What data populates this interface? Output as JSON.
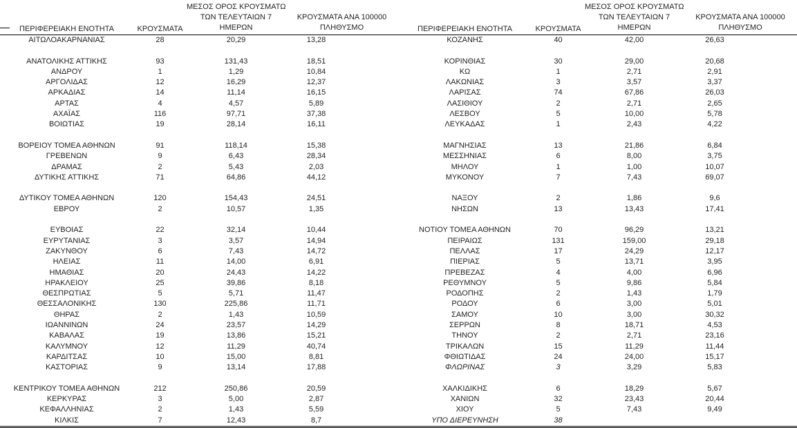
{
  "colors": {
    "background": "#ffffff",
    "text": "#1f1f1f",
    "line": "#000000"
  },
  "table": {
    "headers": {
      "region": "ΠΕΡΙΦΕΡΕΙΑΚΗ ΕΝΟΤΗΤΑ",
      "cases": "ΚΡΟΥΣΜΑΤΑ",
      "avg7_lines": [
        "ΜΕΣΟΣ ΟΡΟΣ ΚΡΟΥΣΜΑΤΩΝ",
        "ΤΩΝ ΤΕΛΕΥΤΑΙΩΝ 7",
        "ΗΜΕΡΩΝ"
      ],
      "per100k_lines": [
        "ΚΡΟΥΣΜΑΤΑ ΑΝΑ 100000",
        "ΠΛΗΘΥΣΜΟ"
      ]
    },
    "left_rows": [
      {
        "region": "ΑΙΤΩΛΟΑΚΑΡΝΑΝΙΑΣ",
        "cases": "28",
        "avg": "20,29",
        "rate": "13,28"
      },
      null,
      {
        "region": "ΑΝΑΤΟΛΙΚΗΣ ΑΤΤΙΚΗΣ",
        "cases": "93",
        "avg": "131,43",
        "rate": "18,51"
      },
      {
        "region": "ΑΝΔΡΟΥ",
        "cases": "1",
        "avg": "1,29",
        "rate": "10,84"
      },
      {
        "region": "ΑΡΓΟΛΙΔΑΣ",
        "cases": "12",
        "avg": "16,29",
        "rate": "12,37"
      },
      {
        "region": "ΑΡΚΑΔΙΑΣ",
        "cases": "14",
        "avg": "11,14",
        "rate": "16,15"
      },
      {
        "region": "ΑΡΤΑΣ",
        "cases": "4",
        "avg": "4,57",
        "rate": "5,89"
      },
      {
        "region": "ΑΧΑΪΑΣ",
        "cases": "116",
        "avg": "97,71",
        "rate": "37,38"
      },
      {
        "region": "ΒΟΙΩΤΙΑΣ",
        "cases": "19",
        "avg": "28,14",
        "rate": "16,11"
      },
      null,
      {
        "region": "ΒΟΡΕΙΟΥ ΤΟΜΕΑ ΑΘΗΝΩΝ",
        "cases": "91",
        "avg": "118,14",
        "rate": "15,38"
      },
      {
        "region": "ΓΡΕΒΕΝΩΝ",
        "cases": "9",
        "avg": "6,43",
        "rate": "28,34"
      },
      {
        "region": "ΔΡΑΜΑΣ",
        "cases": "2",
        "avg": "5,43",
        "rate": "2,03"
      },
      {
        "region": "ΔΥΤΙΚΗΣ ΑΤΤΙΚΗΣ",
        "cases": "71",
        "avg": "64,86",
        "rate": "44,12"
      },
      null,
      {
        "region": "ΔΥΤΙΚΟΥ ΤΟΜΕΑ ΑΘΗΝΩΝ",
        "cases": "120",
        "avg": "154,43",
        "rate": "24,51"
      },
      {
        "region": "ΕΒΡΟΥ",
        "cases": "2",
        "avg": "10,57",
        "rate": "1,35"
      },
      null,
      {
        "region": "ΕΥΒΟΙΑΣ",
        "cases": "22",
        "avg": "32,14",
        "rate": "10,44"
      },
      {
        "region": "ΕΥΡΥΤΑΝΙΑΣ",
        "cases": "3",
        "avg": "3,57",
        "rate": "14,94"
      },
      {
        "region": "ΖΑΚΥΝΘΟΥ",
        "cases": "6",
        "avg": "7,43",
        "rate": "14,72"
      },
      {
        "region": "ΗΛΕΙΑΣ",
        "cases": "11",
        "avg": "14,00",
        "rate": "6,91"
      },
      {
        "region": "ΗΜΑΘΙΑΣ",
        "cases": "20",
        "avg": "24,43",
        "rate": "14,22"
      },
      {
        "region": "ΗΡΑΚΛΕΙΟΥ",
        "cases": "25",
        "avg": "39,86",
        "rate": "8,18"
      },
      {
        "region": "ΘΕΣΠΡΩΤΙΑΣ",
        "cases": "5",
        "avg": "5,71",
        "rate": "11,47"
      },
      {
        "region": "ΘΕΣΣΑΛΟΝΙΚΗΣ",
        "cases": "130",
        "avg": "225,86",
        "rate": "11,71"
      },
      {
        "region": "ΘΗΡΑΣ",
        "cases": "2",
        "avg": "1,43",
        "rate": "10,59"
      },
      {
        "region": "ΙΩΑΝΝΙΝΩΝ",
        "cases": "24",
        "avg": "23,57",
        "rate": "14,29"
      },
      {
        "region": "ΚΑΒΑΛΑΣ",
        "cases": "19",
        "avg": "13,86",
        "rate": "15,21"
      },
      {
        "region": "ΚΑΛΥΜΝΟΥ",
        "cases": "12",
        "avg": "11,29",
        "rate": "40,74"
      },
      {
        "region": "ΚΑΡΔΙΤΣΑΣ",
        "cases": "10",
        "avg": "15,00",
        "rate": "8,81"
      },
      {
        "region": "ΚΑΣΤΟΡΙΑΣ",
        "cases": "9",
        "avg": "13,14",
        "rate": "17,88"
      },
      null,
      {
        "region": "ΚΕΝΤΡΙΚΟΥ ΤΟΜΕΑ ΑΘΗΝΩΝ",
        "cases": "212",
        "avg": "250,86",
        "rate": "20,59"
      },
      {
        "region": "ΚΕΡΚΥΡΑΣ",
        "cases": "3",
        "avg": "5,00",
        "rate": "2,87"
      },
      {
        "region": "ΚΕΦΑΛΛΗΝΙΑΣ",
        "cases": "2",
        "avg": "1,43",
        "rate": "5,59"
      },
      {
        "region": "ΚΙΛΚΙΣ",
        "cases": "7",
        "avg": "12,43",
        "rate": "8,7"
      }
    ],
    "right_rows": [
      {
        "region": "ΚΟΖΑΝΗΣ",
        "cases": "40",
        "avg": "42,00",
        "rate": "26,63"
      },
      null,
      {
        "region": "ΚΟΡΙΝΘΙΑΣ",
        "cases": "30",
        "avg": "29,00",
        "rate": "20,68"
      },
      {
        "region": "ΚΩ",
        "cases": "1",
        "avg": "2,71",
        "rate": "2,91"
      },
      {
        "region": "ΛΑΚΩΝΙΑΣ",
        "cases": "3",
        "avg": "3,57",
        "rate": "3,37"
      },
      {
        "region": "ΛΑΡΙΣΑΣ",
        "cases": "74",
        "avg": "67,86",
        "rate": "26,03"
      },
      {
        "region": "ΛΑΣΙΘΙΟΥ",
        "cases": "2",
        "avg": "2,71",
        "rate": "2,65"
      },
      {
        "region": "ΛΕΣΒΟΥ",
        "cases": "5",
        "avg": "10,00",
        "rate": "5,78"
      },
      {
        "region": "ΛΕΥΚΑΔΑΣ",
        "cases": "1",
        "avg": "2,43",
        "rate": "4,22"
      },
      null,
      {
        "region": "ΜΑΓΝΗΣΙΑΣ",
        "cases": "13",
        "avg": "21,86",
        "rate": "6,84"
      },
      {
        "region": "ΜΕΣΣΗΝΙΑΣ",
        "cases": "6",
        "avg": "8,00",
        "rate": "3,75"
      },
      {
        "region": "ΜΗΛΟΥ",
        "cases": "1",
        "avg": "1,00",
        "rate": "10,07"
      },
      {
        "region": "ΜΥΚΟΝΟΥ",
        "cases": "7",
        "avg": "7,43",
        "rate": "69,07"
      },
      null,
      {
        "region": "ΝΑΞΟΥ",
        "cases": "2",
        "avg": "1,86",
        "rate": "9,6"
      },
      {
        "region": "ΝΗΣΩΝ",
        "cases": "13",
        "avg": "13,43",
        "rate": "17,41"
      },
      null,
      {
        "region": "ΝΟΤΙΟΥ ΤΟΜΕΑ ΑΘΗΝΩΝ",
        "cases": "70",
        "avg": "96,29",
        "rate": "13,21"
      },
      {
        "region": "ΠΕΙΡΑΙΩΣ",
        "cases": "131",
        "avg": "159,00",
        "rate": "29,18"
      },
      {
        "region": "ΠΕΛΛΑΣ",
        "cases": "17",
        "avg": "24,29",
        "rate": "12,17"
      },
      {
        "region": "ΠΙΕΡΙΑΣ",
        "cases": "5",
        "avg": "13,71",
        "rate": "3,95"
      },
      {
        "region": "ΠΡΕΒΕΖΑΣ",
        "cases": "4",
        "avg": "4,00",
        "rate": "6,96"
      },
      {
        "region": "ΡΕΘΥΜΝΟΥ",
        "cases": "5",
        "avg": "9,86",
        "rate": "5,84"
      },
      {
        "region": "ΡΟΔΟΠΗΣ",
        "cases": "2",
        "avg": "1,43",
        "rate": "1,79"
      },
      {
        "region": "ΡΟΔΟΥ",
        "cases": "6",
        "avg": "3,00",
        "rate": "5,01"
      },
      {
        "region": "ΣΑΜΟΥ",
        "cases": "10",
        "avg": "3,00",
        "rate": "30,32"
      },
      {
        "region": "ΣΕΡΡΩΝ",
        "cases": "8",
        "avg": "18,71",
        "rate": "4,53"
      },
      {
        "region": "ΤΗΝΟΥ",
        "cases": "2",
        "avg": "2,71",
        "rate": "23,16"
      },
      {
        "region": "ΤΡΙΚΑΛΩΝ",
        "cases": "15",
        "avg": "11,29",
        "rate": "11,44"
      },
      {
        "region": "ΦΘΙΩΤΙΔΑΣ",
        "cases": "24",
        "avg": "24,00",
        "rate": "15,17"
      },
      {
        "region": "ΦΛΩΡΙΝΑΣ",
        "cases": "3",
        "avg": "3,29",
        "rate": "5,83",
        "italic": true
      },
      null,
      {
        "region": "ΧΑΛΚΙΔΙΚΗΣ",
        "cases": "6",
        "avg": "18,29",
        "rate": "5,67"
      },
      {
        "region": "ΧΑΝΙΩΝ",
        "cases": "32",
        "avg": "23,43",
        "rate": "20,44"
      },
      {
        "region": "ΧΙΟΥ",
        "cases": "5",
        "avg": "7,43",
        "rate": "9,49"
      },
      {
        "region": "ΥΠΟ ΔΙΕΡΕΥΝΗΣΗ",
        "cases": "38",
        "avg": "",
        "rate": "",
        "italic": true
      }
    ]
  }
}
